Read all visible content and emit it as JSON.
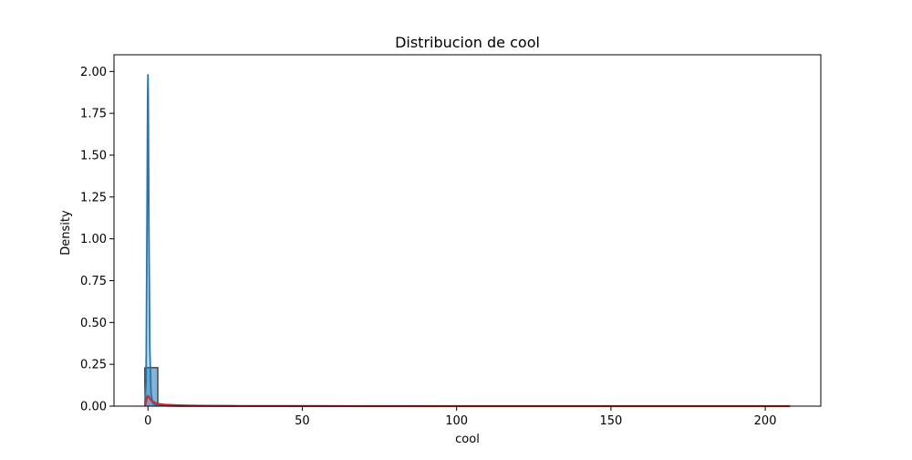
{
  "chart_data": {
    "type": "histogram+kde",
    "title": "Distribucion de cool",
    "xlabel": "cool",
    "ylabel": "Density",
    "xlim": [
      -11.0,
      218.0
    ],
    "ylim": [
      0.0,
      2.1
    ],
    "x_ticks": [
      0,
      50,
      100,
      150,
      200
    ],
    "y_ticks": [
      0.0,
      0.25,
      0.5,
      0.75,
      1.0,
      1.25,
      1.5,
      1.75,
      2.0
    ],
    "y_tick_labels": [
      "0.00",
      "0.25",
      "0.50",
      "0.75",
      "1.00",
      "1.25",
      "1.75",
      "2.00"
    ],
    "x_tick_labels": [
      "0",
      "50",
      "100",
      "150",
      "200"
    ],
    "y_tick_labels_full": [
      "0.00",
      "0.25",
      "0.50",
      "0.75",
      "1.00",
      "1.25",
      "1.50",
      "1.75",
      "2.00"
    ],
    "grid": false,
    "histogram": {
      "color": "#1f77b4",
      "bins": [
        {
          "x0": -1.0,
          "x1": 3.2,
          "density": 0.23
        }
      ]
    },
    "series": [
      {
        "color": "#1f77b4",
        "x": [
          -1.0,
          -0.6,
          -0.3,
          -0.1,
          0.0,
          0.1,
          0.3,
          0.6,
          1.0,
          1.5,
          2.0,
          3.0,
          5.0,
          10.0,
          20.0,
          50.0,
          100.0,
          150.0,
          208.0
        ],
        "y": [
          0.0,
          0.15,
          1.1,
          1.85,
          1.98,
          1.85,
          1.1,
          0.35,
          0.08,
          0.02,
          0.01,
          0.005,
          0.002,
          0.0,
          0.0,
          0.0,
          0.0,
          0.0,
          0.0
        ]
      },
      {
        "color": "#d62728",
        "x": [
          -1.0,
          -0.6,
          -0.3,
          0.0,
          0.3,
          0.8,
          1.5,
          2.5,
          4.0,
          6.0,
          10.0,
          15.0,
          20.0,
          30.0,
          50.0,
          100.0,
          150.0,
          208.0
        ],
        "y": [
          0.0,
          0.03,
          0.055,
          0.062,
          0.055,
          0.04,
          0.028,
          0.018,
          0.012,
          0.008,
          0.005,
          0.003,
          0.002,
          0.001,
          0.0005,
          0.0002,
          0.0001,
          0.0
        ]
      }
    ]
  }
}
